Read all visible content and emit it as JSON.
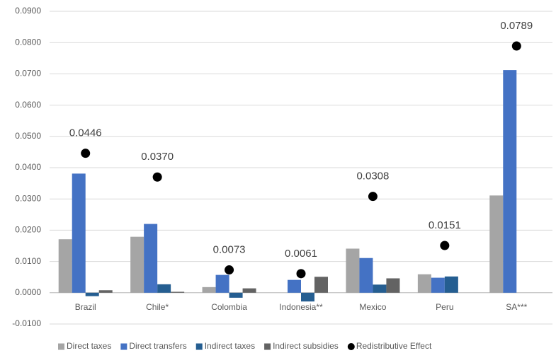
{
  "chart_data": {
    "type": "bar",
    "categories": [
      "Brazil",
      "Chile*",
      "Colombia",
      "Indonesia**",
      "Mexico",
      "Peru",
      "SA***"
    ],
    "series": [
      {
        "name": "Direct taxes",
        "color": "#a5a5a5",
        "values": [
          0.0171,
          0.0179,
          0.0018,
          0,
          0.0141,
          0.0059,
          0.0311
        ]
      },
      {
        "name": "Direct transfers",
        "color": "#4472c4",
        "values": [
          0.0381,
          0.022,
          0.0057,
          0.0041,
          0.0111,
          0.0048,
          0.0712
        ]
      },
      {
        "name": "Indirect taxes",
        "color": "#255e91",
        "values": [
          -0.0011,
          0.0027,
          -0.0016,
          -0.0028,
          0.0026,
          0.0052,
          0
        ]
      },
      {
        "name": "Indirect subsidies",
        "color": "#636363",
        "values": [
          0.0008,
          0.0003,
          0.0014,
          0.0051,
          0.0046,
          0,
          0
        ]
      },
      {
        "name": "Redistributive Effect",
        "color": "#000000",
        "type": "scatter",
        "values": [
          0.0446,
          0.037,
          0.0073,
          0.0061,
          0.0308,
          0.0151,
          0.0789
        ],
        "value_labels": [
          "0.0446",
          "0.0370",
          "0.0073",
          "0.0061",
          "0.0308",
          "0.0151",
          "0.0789"
        ]
      }
    ],
    "ylim": [
      -0.01,
      0.09
    ],
    "yticks": [
      {
        "value": -0.01,
        "label": "-0.0100"
      },
      {
        "value": 0,
        "label": "0.0000"
      },
      {
        "value": 0.01,
        "label": "0.0100"
      },
      {
        "value": 0.02,
        "label": "0.0200"
      },
      {
        "value": 0.03,
        "label": "0.0300"
      },
      {
        "value": 0.04,
        "label": "0.0400"
      },
      {
        "value": 0.05,
        "label": "0.0500"
      },
      {
        "value": 0.06,
        "label": "0.0600"
      },
      {
        "value": 0.07,
        "label": "0.0700"
      },
      {
        "value": 0.08,
        "label": "0.0800"
      },
      {
        "value": 0.09,
        "label": "0.0900"
      }
    ],
    "grid": true,
    "legend": "bottom"
  }
}
